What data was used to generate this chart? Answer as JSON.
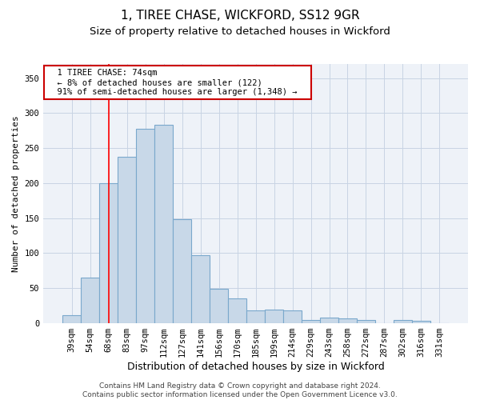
{
  "title": "1, TIREE CHASE, WICKFORD, SS12 9GR",
  "subtitle": "Size of property relative to detached houses in Wickford",
  "xlabel": "Distribution of detached houses by size in Wickford",
  "ylabel": "Number of detached properties",
  "categories": [
    "39sqm",
    "54sqm",
    "68sqm",
    "83sqm",
    "97sqm",
    "112sqm",
    "127sqm",
    "141sqm",
    "156sqm",
    "170sqm",
    "185sqm",
    "199sqm",
    "214sqm",
    "229sqm",
    "243sqm",
    "258sqm",
    "272sqm",
    "287sqm",
    "302sqm",
    "316sqm",
    "331sqm"
  ],
  "values": [
    12,
    65,
    200,
    238,
    277,
    283,
    149,
    97,
    49,
    35,
    18,
    19,
    18,
    5,
    8,
    7,
    5,
    0,
    5,
    4,
    0
  ],
  "bar_color": "#c8d8e8",
  "bar_edge_color": "#7aa8cc",
  "grid_color": "#c8d4e4",
  "background_color": "#eef2f8",
  "red_line_x": 2.0,
  "annotation_text": "  1 TIREE CHASE: 74sqm  \n  ← 8% of detached houses are smaller (122)  \n  91% of semi-detached houses are larger (1,348) →  ",
  "annotation_box_color": "#ffffff",
  "annotation_box_edge": "#cc0000",
  "footer_text": "Contains HM Land Registry data © Crown copyright and database right 2024.\nContains public sector information licensed under the Open Government Licence v3.0.",
  "title_fontsize": 11,
  "subtitle_fontsize": 9.5,
  "xlabel_fontsize": 9,
  "ylabel_fontsize": 8,
  "tick_fontsize": 7.5,
  "footer_fontsize": 6.5,
  "ylim": [
    0,
    370
  ]
}
